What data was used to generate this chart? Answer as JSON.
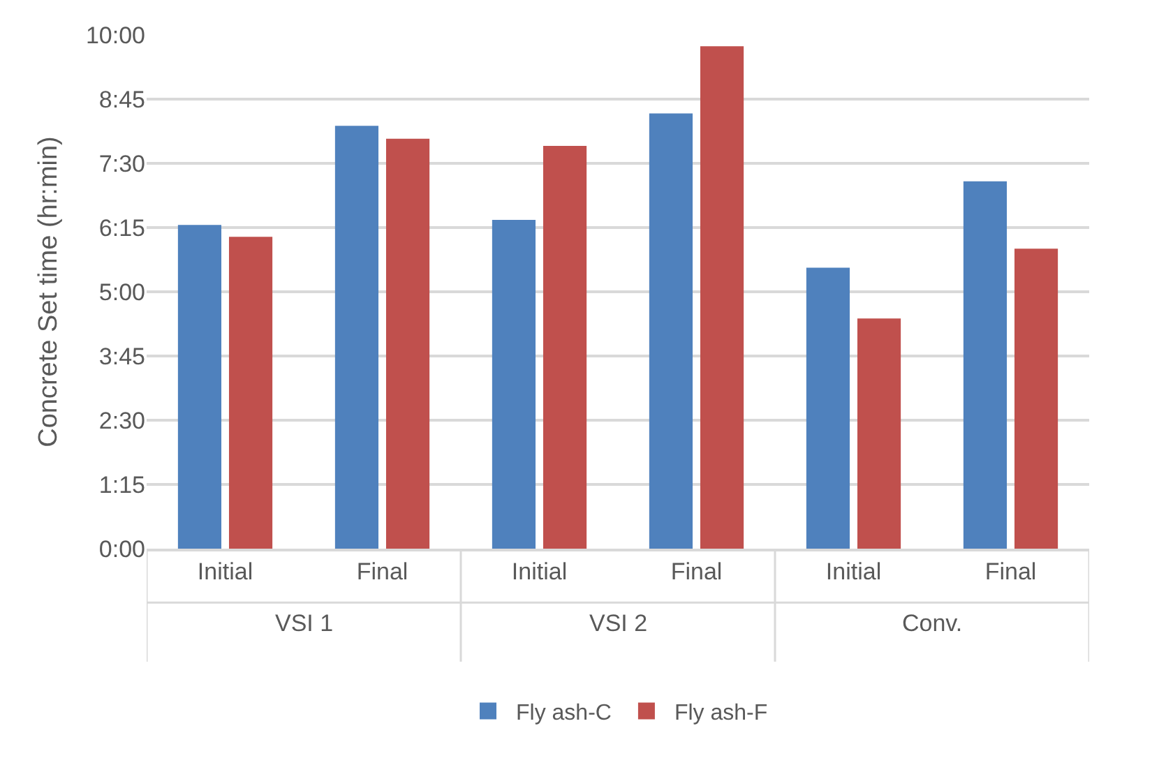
{
  "chart_data": {
    "type": "bar",
    "ylabel": "Concrete Set time (hr:min)",
    "categories": [
      "Initial",
      "Final",
      "Initial",
      "Final",
      "Initial",
      "Final"
    ],
    "annotations": [
      "VSI 1",
      "VSI 2",
      "Conv."
    ],
    "series": [
      {
        "name": "Fly ash-C",
        "color": "#4f81bd",
        "values": [
          6.3,
          8.23,
          6.4,
          8.47,
          5.47,
          7.15
        ]
      },
      {
        "name": "Fly ash-F",
        "color": "#c0504d",
        "values": [
          6.07,
          7.98,
          7.84,
          9.78,
          4.48,
          5.84
        ]
      }
    ],
    "ylim": [
      0,
      10
    ],
    "yticks": [
      {
        "value": 0,
        "label": "0:00"
      },
      {
        "value": 1.25,
        "label": "1:15"
      },
      {
        "value": 2.5,
        "label": "2:30"
      },
      {
        "value": 3.75,
        "label": "3:45"
      },
      {
        "value": 5,
        "label": "5:00"
      },
      {
        "value": 6.25,
        "label": "6:15"
      },
      {
        "value": 7.5,
        "label": "7:30"
      },
      {
        "value": 8.75,
        "label": "8:45"
      },
      {
        "value": 10,
        "label": "10:00"
      }
    ],
    "grid": "y",
    "legend": "bottom"
  }
}
